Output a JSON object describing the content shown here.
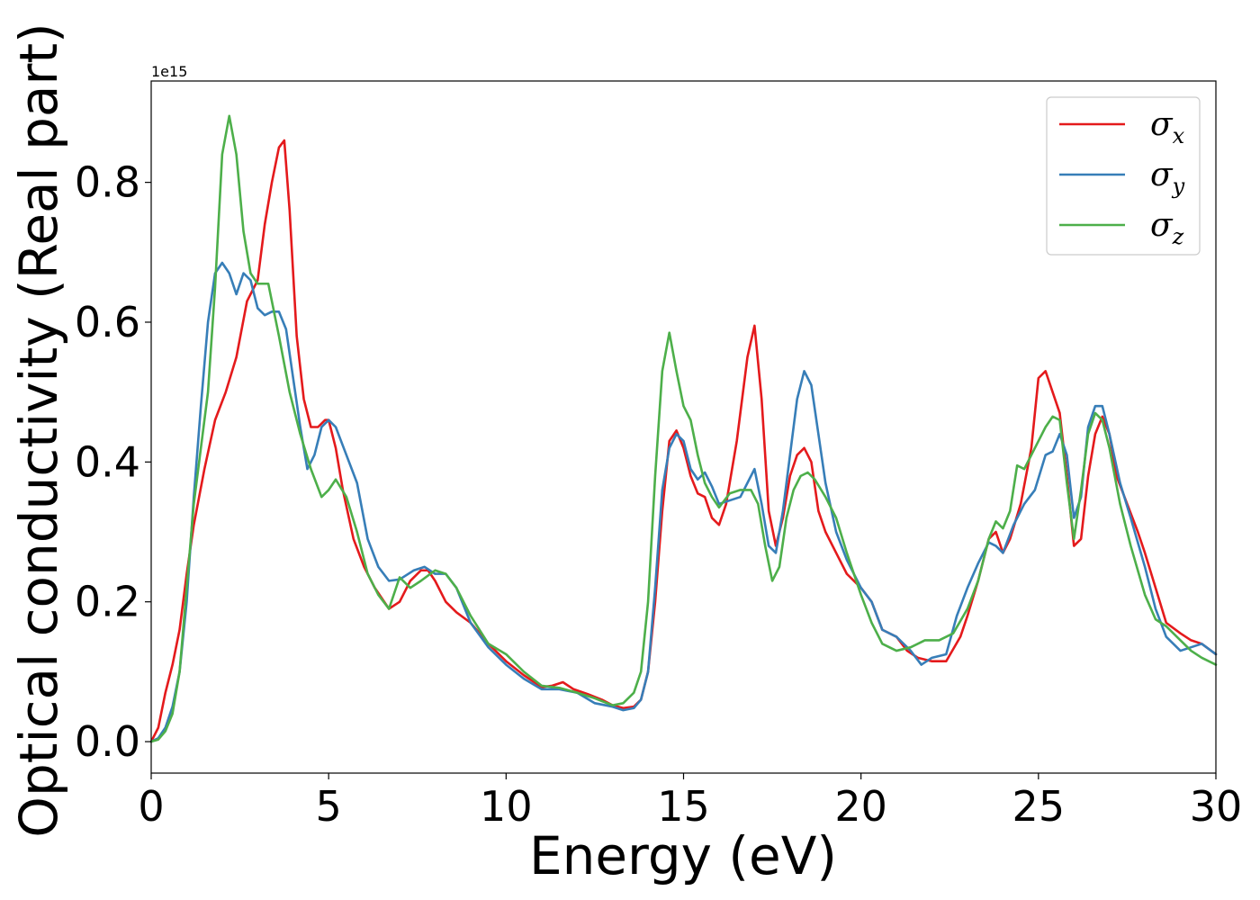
{
  "chart_data": {
    "type": "line",
    "title": "",
    "xlabel": "Energy (eV)",
    "ylabel": "Optical conductivity (Real part)",
    "y_offset_label": "1e15",
    "xlim": [
      0,
      30
    ],
    "ylim": [
      -0.045,
      0.945
    ],
    "xticks": [
      0,
      5,
      10,
      15,
      20,
      25,
      30
    ],
    "xtick_labels": [
      "0",
      "5",
      "10",
      "15",
      "20",
      "25",
      "30"
    ],
    "yticks": [
      0.0,
      0.2,
      0.4,
      0.6,
      0.8
    ],
    "ytick_labels": [
      "0.0",
      "0.2",
      "0.4",
      "0.6",
      "0.8"
    ],
    "grid": false,
    "legend_position": "top-right",
    "series": [
      {
        "name": "σx",
        "legend_base": "σ",
        "legend_sub": "x",
        "color": "#e41a1c",
        "x": [
          0,
          0.2,
          0.4,
          0.6,
          0.8,
          1.0,
          1.2,
          1.5,
          1.8,
          2.1,
          2.4,
          2.7,
          3.0,
          3.2,
          3.4,
          3.6,
          3.75,
          3.9,
          4.1,
          4.3,
          4.5,
          4.7,
          4.9,
          5.0,
          5.2,
          5.4,
          5.7,
          6.0,
          6.3,
          6.7,
          7.0,
          7.3,
          7.6,
          7.8,
          8.0,
          8.3,
          8.6,
          9.0,
          9.5,
          10.0,
          10.5,
          11.0,
          11.3,
          11.6,
          11.9,
          12.3,
          12.7,
          13.0,
          13.3,
          13.6,
          13.8,
          14.0,
          14.2,
          14.4,
          14.6,
          14.8,
          15.0,
          15.2,
          15.4,
          15.6,
          15.8,
          16.0,
          16.2,
          16.5,
          16.8,
          17.0,
          17.2,
          17.4,
          17.6,
          17.8,
          18.0,
          18.2,
          18.4,
          18.6,
          18.8,
          19.0,
          19.3,
          19.6,
          20.0,
          20.3,
          20.6,
          21.0,
          21.3,
          21.6,
          22.0,
          22.4,
          22.8,
          23.0,
          23.3,
          23.6,
          23.8,
          24.0,
          24.2,
          24.5,
          24.8,
          25.0,
          25.2,
          25.4,
          25.6,
          25.8,
          26.0,
          26.2,
          26.4,
          26.6,
          26.8,
          27.0,
          27.2,
          27.5,
          27.8,
          28.0,
          28.3,
          28.6,
          29.0,
          29.3,
          29.6,
          30.0
        ],
        "y": [
          0.0,
          0.02,
          0.07,
          0.11,
          0.16,
          0.24,
          0.31,
          0.39,
          0.46,
          0.5,
          0.55,
          0.63,
          0.66,
          0.74,
          0.8,
          0.85,
          0.86,
          0.76,
          0.58,
          0.49,
          0.45,
          0.45,
          0.46,
          0.46,
          0.42,
          0.36,
          0.29,
          0.25,
          0.22,
          0.19,
          0.2,
          0.23,
          0.245,
          0.245,
          0.23,
          0.2,
          0.185,
          0.17,
          0.14,
          0.115,
          0.095,
          0.078,
          0.08,
          0.085,
          0.075,
          0.068,
          0.06,
          0.052,
          0.048,
          0.05,
          0.06,
          0.1,
          0.2,
          0.33,
          0.43,
          0.445,
          0.42,
          0.38,
          0.355,
          0.35,
          0.32,
          0.31,
          0.34,
          0.43,
          0.55,
          0.595,
          0.49,
          0.33,
          0.28,
          0.32,
          0.38,
          0.41,
          0.42,
          0.4,
          0.33,
          0.3,
          0.27,
          0.24,
          0.22,
          0.2,
          0.16,
          0.15,
          0.13,
          0.12,
          0.115,
          0.115,
          0.15,
          0.18,
          0.23,
          0.29,
          0.3,
          0.27,
          0.29,
          0.34,
          0.42,
          0.52,
          0.53,
          0.5,
          0.47,
          0.38,
          0.28,
          0.29,
          0.38,
          0.44,
          0.465,
          0.44,
          0.38,
          0.34,
          0.3,
          0.27,
          0.22,
          0.17,
          0.155,
          0.145,
          0.14,
          0.125
        ]
      },
      {
        "name": "σy",
        "legend_base": "σ",
        "legend_sub": "y",
        "color": "#377eb8",
        "x": [
          0,
          0.2,
          0.4,
          0.6,
          0.8,
          1.0,
          1.2,
          1.4,
          1.6,
          1.8,
          2.0,
          2.2,
          2.4,
          2.6,
          2.8,
          3.0,
          3.2,
          3.4,
          3.6,
          3.8,
          4.0,
          4.2,
          4.4,
          4.6,
          4.8,
          5.0,
          5.2,
          5.5,
          5.8,
          6.1,
          6.4,
          6.7,
          7.0,
          7.4,
          7.7,
          8.0,
          8.3,
          8.6,
          9.0,
          9.5,
          10.0,
          10.5,
          11.0,
          11.5,
          12.0,
          12.5,
          13.0,
          13.3,
          13.6,
          13.8,
          14.0,
          14.2,
          14.4,
          14.6,
          14.8,
          15.0,
          15.2,
          15.4,
          15.6,
          15.8,
          16.0,
          16.3,
          16.6,
          16.8,
          17.0,
          17.2,
          17.4,
          17.6,
          17.8,
          18.0,
          18.2,
          18.4,
          18.6,
          18.8,
          19.0,
          19.3,
          19.6,
          20.0,
          20.3,
          20.6,
          21.0,
          21.4,
          21.7,
          22.0,
          22.4,
          22.7,
          23.0,
          23.3,
          23.6,
          23.8,
          24.0,
          24.3,
          24.6,
          24.9,
          25.2,
          25.4,
          25.6,
          25.8,
          26.0,
          26.2,
          26.4,
          26.6,
          26.8,
          27.0,
          27.3,
          27.6,
          28.0,
          28.3,
          28.6,
          29.0,
          29.3,
          29.6,
          30.0
        ],
        "y": [
          0.0,
          0.005,
          0.02,
          0.05,
          0.1,
          0.2,
          0.35,
          0.48,
          0.6,
          0.67,
          0.685,
          0.67,
          0.64,
          0.67,
          0.66,
          0.62,
          0.61,
          0.615,
          0.615,
          0.59,
          0.52,
          0.45,
          0.39,
          0.41,
          0.45,
          0.46,
          0.45,
          0.41,
          0.37,
          0.29,
          0.25,
          0.23,
          0.232,
          0.245,
          0.25,
          0.24,
          0.24,
          0.22,
          0.17,
          0.135,
          0.11,
          0.09,
          0.075,
          0.075,
          0.07,
          0.055,
          0.05,
          0.045,
          0.048,
          0.06,
          0.1,
          0.22,
          0.36,
          0.42,
          0.44,
          0.43,
          0.39,
          0.375,
          0.385,
          0.365,
          0.34,
          0.345,
          0.35,
          0.37,
          0.39,
          0.34,
          0.28,
          0.27,
          0.33,
          0.41,
          0.49,
          0.53,
          0.51,
          0.44,
          0.37,
          0.3,
          0.26,
          0.22,
          0.2,
          0.16,
          0.15,
          0.13,
          0.11,
          0.12,
          0.125,
          0.18,
          0.22,
          0.255,
          0.285,
          0.28,
          0.27,
          0.31,
          0.34,
          0.36,
          0.41,
          0.415,
          0.44,
          0.41,
          0.32,
          0.35,
          0.45,
          0.48,
          0.48,
          0.44,
          0.37,
          0.32,
          0.25,
          0.19,
          0.15,
          0.13,
          0.135,
          0.14,
          0.125
        ]
      },
      {
        "name": "σz",
        "legend_base": "σ",
        "legend_sub": "z",
        "color": "#4daf4a",
        "x": [
          0,
          0.2,
          0.4,
          0.6,
          0.8,
          1.0,
          1.2,
          1.4,
          1.6,
          1.8,
          2.0,
          2.2,
          2.4,
          2.6,
          2.8,
          3.0,
          3.3,
          3.6,
          3.9,
          4.2,
          4.5,
          4.8,
          5.0,
          5.2,
          5.5,
          5.8,
          6.1,
          6.4,
          6.7,
          7.0,
          7.3,
          7.6,
          8.0,
          8.3,
          8.6,
          9.0,
          9.5,
          10.0,
          10.5,
          11.0,
          11.5,
          12.0,
          12.5,
          13.0,
          13.3,
          13.6,
          13.8,
          14.0,
          14.2,
          14.4,
          14.6,
          14.8,
          15.0,
          15.2,
          15.4,
          15.6,
          15.8,
          16.0,
          16.3,
          16.6,
          16.9,
          17.1,
          17.3,
          17.5,
          17.7,
          17.9,
          18.1,
          18.3,
          18.5,
          18.7,
          19.0,
          19.3,
          19.6,
          20.0,
          20.3,
          20.6,
          21.0,
          21.4,
          21.8,
          22.2,
          22.6,
          23.0,
          23.3,
          23.6,
          23.8,
          24.0,
          24.2,
          24.4,
          24.6,
          24.8,
          25.0,
          25.2,
          25.4,
          25.6,
          25.8,
          26.0,
          26.2,
          26.4,
          26.6,
          26.8,
          27.0,
          27.3,
          27.6,
          28.0,
          28.3,
          28.6,
          29.0,
          29.3,
          29.6,
          30.0
        ],
        "y": [
          0.0,
          0.003,
          0.015,
          0.04,
          0.1,
          0.22,
          0.34,
          0.42,
          0.5,
          0.65,
          0.84,
          0.895,
          0.84,
          0.73,
          0.67,
          0.655,
          0.655,
          0.58,
          0.5,
          0.44,
          0.39,
          0.35,
          0.36,
          0.375,
          0.35,
          0.3,
          0.24,
          0.21,
          0.19,
          0.235,
          0.22,
          0.23,
          0.245,
          0.24,
          0.22,
          0.18,
          0.14,
          0.125,
          0.1,
          0.08,
          0.077,
          0.07,
          0.062,
          0.052,
          0.055,
          0.07,
          0.1,
          0.2,
          0.38,
          0.53,
          0.585,
          0.53,
          0.48,
          0.46,
          0.41,
          0.37,
          0.35,
          0.335,
          0.355,
          0.36,
          0.36,
          0.34,
          0.28,
          0.23,
          0.25,
          0.32,
          0.36,
          0.38,
          0.385,
          0.375,
          0.35,
          0.32,
          0.27,
          0.21,
          0.17,
          0.14,
          0.13,
          0.135,
          0.145,
          0.145,
          0.155,
          0.19,
          0.23,
          0.29,
          0.315,
          0.305,
          0.33,
          0.395,
          0.39,
          0.41,
          0.43,
          0.45,
          0.465,
          0.46,
          0.37,
          0.29,
          0.36,
          0.44,
          0.47,
          0.46,
          0.42,
          0.34,
          0.28,
          0.21,
          0.175,
          0.165,
          0.145,
          0.13,
          0.12,
          0.11
        ]
      }
    ]
  }
}
